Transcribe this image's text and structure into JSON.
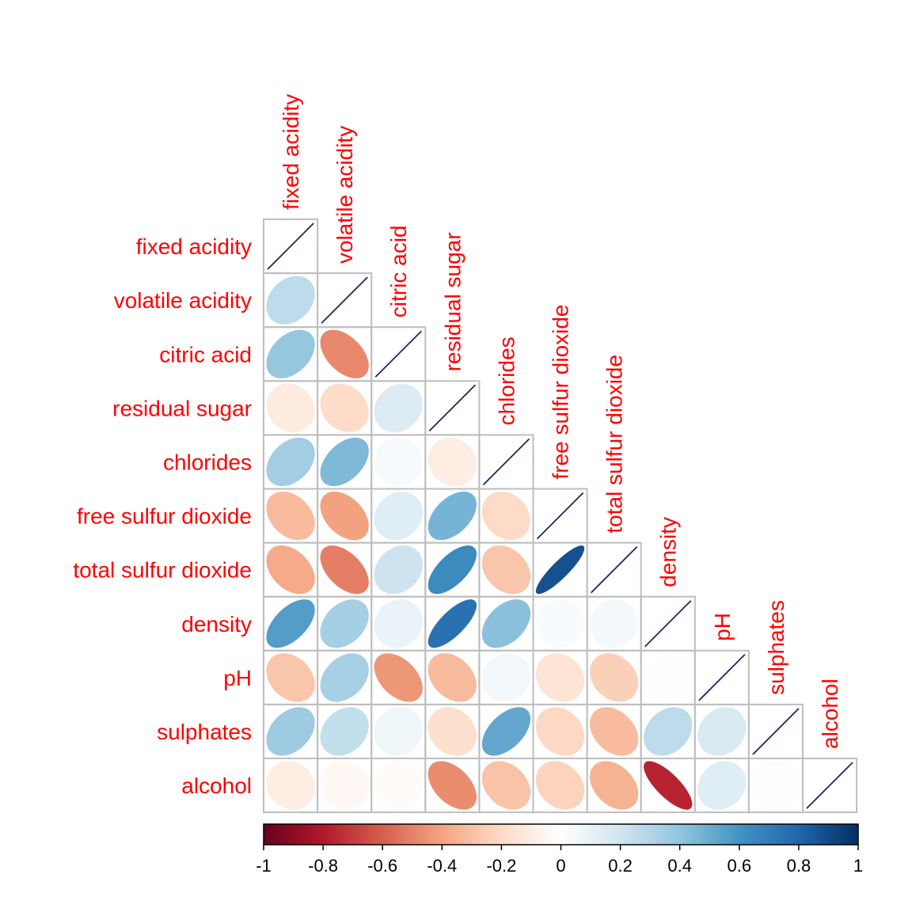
{
  "chart_data": {
    "type": "heatmap",
    "variables": [
      "fixed acidity",
      "volatile acidity",
      "citric acid",
      "residual sugar",
      "chlorides",
      "free sulfur dioxide",
      "total sulfur dioxide",
      "density",
      "pH",
      "sulphates",
      "alcohol"
    ],
    "matrix": [
      [
        1,
        0.26,
        0.39,
        -0.11,
        0.35,
        -0.32,
        -0.38,
        0.56,
        -0.28,
        0.36,
        -0.1
      ],
      [
        0.26,
        1,
        -0.48,
        -0.19,
        0.45,
        -0.41,
        -0.51,
        0.34,
        0.33,
        0.24,
        -0.04
      ],
      [
        0.39,
        -0.48,
        1,
        0.15,
        0.04,
        0.14,
        0.21,
        0.09,
        -0.44,
        0.07,
        -0.02
      ],
      [
        -0.11,
        -0.19,
        0.15,
        1,
        -0.1,
        0.47,
        0.64,
        0.75,
        -0.32,
        -0.18,
        -0.47
      ],
      [
        0.35,
        0.45,
        0.04,
        -0.1,
        1,
        -0.2,
        -0.28,
        0.42,
        0.06,
        0.52,
        -0.29
      ],
      [
        -0.32,
        -0.41,
        0.14,
        0.47,
        -0.2,
        1,
        0.88,
        0.03,
        -0.15,
        -0.21,
        -0.23
      ],
      [
        -0.38,
        -0.51,
        0.21,
        0.64,
        -0.28,
        0.88,
        1,
        0.05,
        -0.24,
        -0.32,
        -0.35
      ],
      [
        0.56,
        0.34,
        0.09,
        0.75,
        0.42,
        0.03,
        0.05,
        1,
        0.01,
        0.26,
        -0.77
      ],
      [
        -0.28,
        0.33,
        -0.44,
        -0.32,
        0.06,
        -0.15,
        -0.24,
        0.01,
        1,
        0.17,
        0.14
      ],
      [
        0.36,
        0.24,
        0.07,
        -0.18,
        0.52,
        -0.21,
        -0.32,
        0.26,
        0.17,
        1,
        -0.01
      ],
      [
        -0.1,
        -0.04,
        -0.02,
        -0.47,
        -0.29,
        -0.23,
        -0.35,
        -0.77,
        0.14,
        -0.01,
        1
      ]
    ],
    "layout": "lower-triangular",
    "method": "ellipse",
    "diagonal": "line",
    "colorbar": {
      "range": [
        -1,
        1
      ],
      "ticks": [
        "-1",
        "-0.8",
        "-0.6",
        "-0.4",
        "-0.2",
        "0",
        "0.2",
        "0.4",
        "0.6",
        "0.8",
        "1"
      ],
      "tick_values": [
        -1,
        -0.8,
        -0.6,
        -0.4,
        -0.2,
        0,
        0.2,
        0.4,
        0.6,
        0.8,
        1
      ],
      "palette": [
        "#67001F",
        "#B2182B",
        "#D6604D",
        "#F4A582",
        "#FDDBC7",
        "#FFFFFF",
        "#D1E5F0",
        "#92C5DE",
        "#4393C3",
        "#2166AC",
        "#053061"
      ]
    },
    "label_color": "#ff0000",
    "grid_color": "#bebebe",
    "diagonal_line_color": "#1a2a5a"
  }
}
